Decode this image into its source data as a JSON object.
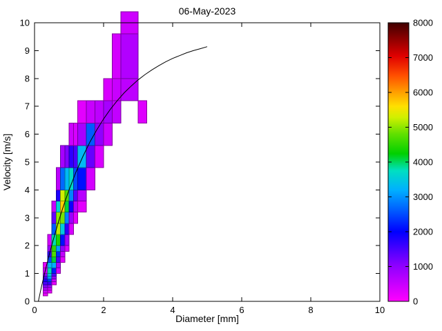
{
  "chart_data": {
    "type": "heatmap",
    "title": "06-May-2023",
    "xlabel": "Diameter [mm]",
    "ylabel": "Velocity [m/s]",
    "xlim": [
      0,
      10
    ],
    "ylim": [
      0,
      10
    ],
    "xticks": [
      0,
      2,
      4,
      6,
      8,
      10
    ],
    "yticks": [
      0,
      1,
      2,
      3,
      4,
      5,
      6,
      7,
      8,
      9,
      10
    ],
    "grid": false,
    "legend": "none",
    "overlay_curve": {
      "name": "terminal-velocity-curve",
      "color": "#000000",
      "points": [
        [
          0.11,
          0
        ],
        [
          0.2,
          0.52
        ],
        [
          0.3,
          1.05
        ],
        [
          0.4,
          1.55
        ],
        [
          0.5,
          2.02
        ],
        [
          0.6,
          2.46
        ],
        [
          0.7,
          2.88
        ],
        [
          0.8,
          3.28
        ],
        [
          0.9,
          3.65
        ],
        [
          1.0,
          4.0
        ],
        [
          1.2,
          4.64
        ],
        [
          1.4,
          5.2
        ],
        [
          1.6,
          5.71
        ],
        [
          1.8,
          6.15
        ],
        [
          2.0,
          6.55
        ],
        [
          2.2,
          6.9
        ],
        [
          2.4,
          7.21
        ],
        [
          2.6,
          7.49
        ],
        [
          2.8,
          7.73
        ],
        [
          3.0,
          7.95
        ],
        [
          3.2,
          8.14
        ],
        [
          3.4,
          8.31
        ],
        [
          3.6,
          8.46
        ],
        [
          3.8,
          8.6
        ],
        [
          4.0,
          8.72
        ],
        [
          4.2,
          8.82
        ],
        [
          4.4,
          8.92
        ],
        [
          4.6,
          9.0
        ],
        [
          4.8,
          9.07
        ],
        [
          5.0,
          9.14
        ]
      ]
    },
    "colorbar": {
      "min": 0,
      "max": 8000,
      "ticks": [
        0,
        1000,
        2000,
        3000,
        4000,
        5000,
        6000,
        7000,
        8000
      ]
    },
    "colormap": [
      {
        "t": 0.0,
        "c": "#ff00ff"
      },
      {
        "t": 0.13,
        "c": "#8c00ff"
      },
      {
        "t": 0.25,
        "c": "#0000ff"
      },
      {
        "t": 0.33,
        "c": "#0060ff"
      },
      {
        "t": 0.4,
        "c": "#00b0ff"
      },
      {
        "t": 0.47,
        "c": "#00e0c0"
      },
      {
        "t": 0.53,
        "c": "#00d000"
      },
      {
        "t": 0.6,
        "c": "#60e000"
      },
      {
        "t": 0.66,
        "c": "#d0f000"
      },
      {
        "t": 0.7,
        "c": "#ffe000"
      },
      {
        "t": 0.75,
        "c": "#ffa000"
      },
      {
        "t": 0.81,
        "c": "#ff5000"
      },
      {
        "t": 0.88,
        "c": "#e00000"
      },
      {
        "t": 0.94,
        "c": "#900000"
      },
      {
        "t": 1.0,
        "c": "#400000"
      }
    ],
    "cells_format": [
      "d_min_mm",
      "d_max_mm",
      "v_min_ms",
      "v_max_ms",
      "count"
    ],
    "cells": [
      [
        0.25,
        0.375,
        0.2,
        0.3,
        200
      ],
      [
        0.25,
        0.375,
        0.3,
        0.4,
        400
      ],
      [
        0.25,
        0.375,
        0.4,
        0.5,
        700
      ],
      [
        0.25,
        0.375,
        0.5,
        0.6,
        1100
      ],
      [
        0.25,
        0.375,
        0.6,
        0.7,
        1500
      ],
      [
        0.25,
        0.375,
        0.7,
        0.8,
        1800
      ],
      [
        0.25,
        0.375,
        0.8,
        0.9,
        1500
      ],
      [
        0.25,
        0.375,
        0.9,
        1.0,
        1000
      ],
      [
        0.25,
        0.375,
        1.0,
        1.2,
        500
      ],
      [
        0.25,
        0.375,
        1.2,
        1.4,
        250
      ],
      [
        0.375,
        0.5,
        0.3,
        0.4,
        200
      ],
      [
        0.375,
        0.5,
        0.4,
        0.5,
        500
      ],
      [
        0.375,
        0.5,
        0.5,
        0.6,
        900
      ],
      [
        0.375,
        0.5,
        0.6,
        0.7,
        1600
      ],
      [
        0.375,
        0.5,
        0.7,
        0.8,
        2400
      ],
      [
        0.375,
        0.5,
        0.8,
        0.9,
        3100
      ],
      [
        0.375,
        0.5,
        0.9,
        1.0,
        3500
      ],
      [
        0.375,
        0.5,
        1.0,
        1.2,
        3800
      ],
      [
        0.375,
        0.5,
        1.2,
        1.4,
        3300
      ],
      [
        0.375,
        0.5,
        1.4,
        1.6,
        2500
      ],
      [
        0.375,
        0.5,
        1.6,
        1.8,
        1700
      ],
      [
        0.375,
        0.5,
        1.8,
        2.0,
        900
      ],
      [
        0.375,
        0.5,
        2.0,
        2.4,
        400
      ],
      [
        0.5,
        0.625,
        0.6,
        0.7,
        250
      ],
      [
        0.5,
        0.625,
        0.7,
        0.8,
        500
      ],
      [
        0.5,
        0.625,
        0.8,
        0.9,
        900
      ],
      [
        0.5,
        0.625,
        0.9,
        1.0,
        1400
      ],
      [
        0.5,
        0.625,
        1.0,
        1.2,
        2200
      ],
      [
        0.5,
        0.625,
        1.2,
        1.4,
        3200
      ],
      [
        0.5,
        0.625,
        1.4,
        1.6,
        4100
      ],
      [
        0.5,
        0.625,
        1.6,
        1.8,
        4700
      ],
      [
        0.5,
        0.625,
        1.8,
        2.0,
        4500
      ],
      [
        0.5,
        0.625,
        2.0,
        2.4,
        3800
      ],
      [
        0.5,
        0.625,
        2.4,
        2.8,
        2600
      ],
      [
        0.5,
        0.625,
        2.8,
        3.2,
        1300
      ],
      [
        0.5,
        0.625,
        3.2,
        3.6,
        500
      ],
      [
        0.625,
        0.75,
        1.0,
        1.2,
        350
      ],
      [
        0.625,
        0.75,
        1.2,
        1.4,
        800
      ],
      [
        0.625,
        0.75,
        1.4,
        1.6,
        1500
      ],
      [
        0.625,
        0.75,
        1.6,
        1.8,
        2300
      ],
      [
        0.625,
        0.75,
        1.8,
        2.0,
        3100
      ],
      [
        0.625,
        0.75,
        2.0,
        2.4,
        4400
      ],
      [
        0.625,
        0.75,
        2.4,
        2.8,
        5200
      ],
      [
        0.625,
        0.75,
        2.8,
        3.2,
        5000
      ],
      [
        0.625,
        0.75,
        3.2,
        3.6,
        3600
      ],
      [
        0.625,
        0.75,
        3.6,
        4.0,
        1800
      ],
      [
        0.625,
        0.75,
        4.0,
        4.8,
        600
      ],
      [
        0.75,
        0.875,
        1.4,
        1.6,
        250
      ],
      [
        0.75,
        0.875,
        1.6,
        1.8,
        550
      ],
      [
        0.75,
        0.875,
        1.8,
        2.0,
        1000
      ],
      [
        0.75,
        0.875,
        2.0,
        2.4,
        2100
      ],
      [
        0.75,
        0.875,
        2.4,
        2.8,
        3500
      ],
      [
        0.75,
        0.875,
        2.8,
        3.2,
        4900
      ],
      [
        0.75,
        0.875,
        3.2,
        3.6,
        5700
      ],
      [
        0.75,
        0.875,
        3.6,
        4.0,
        5300
      ],
      [
        0.75,
        0.875,
        4.0,
        4.8,
        2700
      ],
      [
        0.75,
        0.875,
        4.8,
        5.6,
        800
      ],
      [
        0.875,
        1.0,
        1.8,
        2.0,
        300
      ],
      [
        0.875,
        1.0,
        2.0,
        2.4,
        800
      ],
      [
        0.875,
        1.0,
        2.4,
        2.8,
        1700
      ],
      [
        0.875,
        1.0,
        2.8,
        3.2,
        2900
      ],
      [
        0.875,
        1.0,
        3.2,
        3.6,
        4100
      ],
      [
        0.875,
        1.0,
        3.6,
        4.0,
        4700
      ],
      [
        0.875,
        1.0,
        4.0,
        4.8,
        3300
      ],
      [
        0.875,
        1.0,
        4.8,
        5.6,
        1100
      ],
      [
        1.0,
        1.125,
        2.4,
        2.8,
        350
      ],
      [
        1.0,
        1.125,
        2.8,
        3.2,
        900
      ],
      [
        1.0,
        1.125,
        3.2,
        3.6,
        1900
      ],
      [
        1.0,
        1.125,
        3.6,
        4.0,
        2900
      ],
      [
        1.0,
        1.125,
        4.0,
        4.8,
        3700
      ],
      [
        1.0,
        1.125,
        4.8,
        5.6,
        1700
      ],
      [
        1.0,
        1.125,
        5.6,
        6.4,
        450
      ],
      [
        1.125,
        1.25,
        2.8,
        3.2,
        250
      ],
      [
        1.125,
        1.25,
        3.2,
        3.6,
        700
      ],
      [
        1.125,
        1.25,
        3.6,
        4.0,
        1400
      ],
      [
        1.125,
        1.25,
        4.0,
        4.8,
        2500
      ],
      [
        1.125,
        1.25,
        4.8,
        5.6,
        1500
      ],
      [
        1.125,
        1.25,
        5.6,
        6.4,
        350
      ],
      [
        1.25,
        1.5,
        3.2,
        3.6,
        250
      ],
      [
        1.25,
        1.5,
        3.6,
        4.0,
        650
      ],
      [
        1.25,
        1.5,
        4.0,
        4.8,
        2100
      ],
      [
        1.25,
        1.5,
        4.8,
        5.6,
        3300
      ],
      [
        1.25,
        1.5,
        5.6,
        6.4,
        800
      ],
      [
        1.25,
        1.5,
        6.4,
        7.2,
        250
      ],
      [
        1.5,
        1.75,
        4.0,
        4.8,
        400
      ],
      [
        1.5,
        1.75,
        4.8,
        5.6,
        1300
      ],
      [
        1.5,
        1.75,
        5.6,
        6.4,
        2600
      ],
      [
        1.5,
        1.75,
        6.4,
        7.2,
        500
      ],
      [
        1.75,
        2.0,
        4.8,
        5.6,
        350
      ],
      [
        1.75,
        2.0,
        5.6,
        6.4,
        1000
      ],
      [
        1.75,
        2.0,
        6.4,
        7.2,
        600
      ],
      [
        2.0,
        2.25,
        5.6,
        6.4,
        450
      ],
      [
        2.0,
        2.25,
        6.4,
        7.2,
        800
      ],
      [
        2.0,
        2.25,
        7.2,
        8.0,
        350
      ],
      [
        2.25,
        2.5,
        6.4,
        7.2,
        550
      ],
      [
        2.25,
        2.5,
        7.2,
        8.0,
        500
      ],
      [
        2.25,
        2.5,
        8.0,
        9.6,
        400
      ],
      [
        2.5,
        3.0,
        7.2,
        8.0,
        600
      ],
      [
        2.5,
        3.0,
        8.0,
        9.6,
        700
      ],
      [
        2.5,
        3.0,
        9.6,
        10.4,
        450
      ],
      [
        3.0,
        3.25,
        6.4,
        7.2,
        300
      ]
    ]
  }
}
